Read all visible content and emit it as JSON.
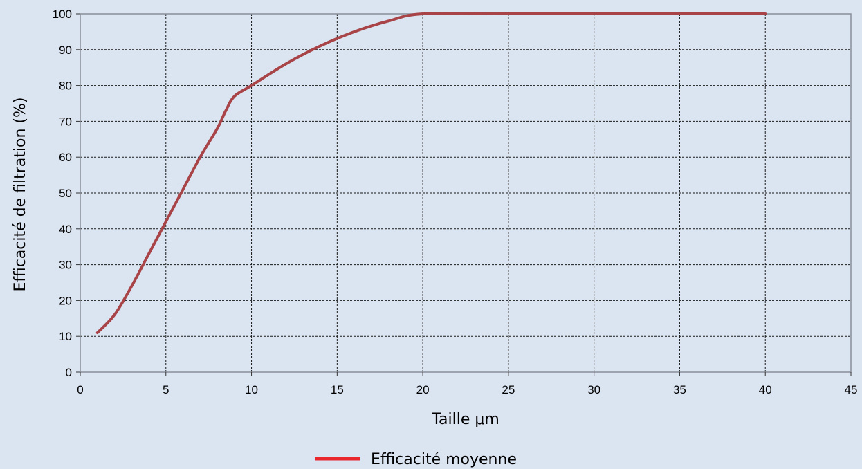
{
  "chart_data": {
    "type": "line",
    "title": "",
    "xlabel": "Taille μm",
    "ylabel": "Efficacité de filtration (%)",
    "xlim": [
      0,
      45
    ],
    "ylim": [
      0,
      100
    ],
    "x_ticks": [
      0,
      5,
      10,
      15,
      20,
      25,
      30,
      35,
      40,
      45
    ],
    "y_ticks": [
      0,
      10,
      20,
      30,
      40,
      50,
      60,
      70,
      80,
      90,
      100
    ],
    "grid": true,
    "legend_position": "bottom-center",
    "series": [
      {
        "name": "Efficacité moyenne",
        "color": "#a84447",
        "legend_color": "#e8262b",
        "x": [
          1,
          2,
          3,
          4,
          5,
          6,
          7,
          8,
          8.5,
          9,
          10,
          12,
          14,
          16,
          18,
          20,
          25,
          30,
          35,
          40
        ],
        "y": [
          11,
          16,
          24,
          33,
          42,
          51,
          60,
          68,
          73,
          77,
          80,
          86,
          91,
          95,
          98,
          100,
          100,
          100,
          100,
          100
        ]
      }
    ]
  }
}
